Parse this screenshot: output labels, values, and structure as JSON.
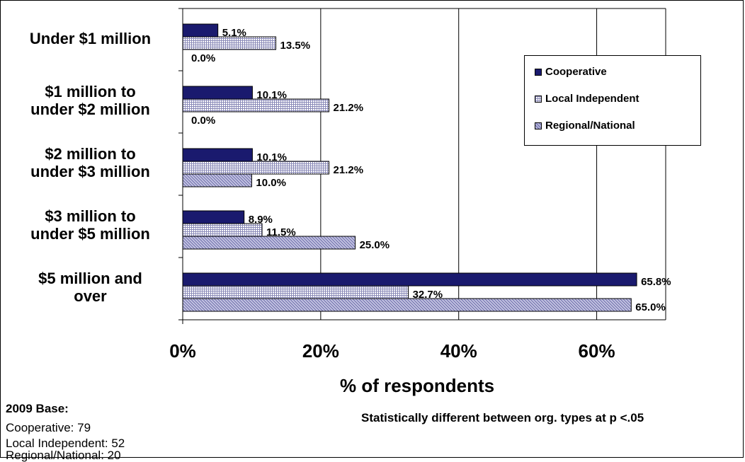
{
  "chart_data": {
    "type": "bar",
    "orientation": "horizontal",
    "categories": [
      "Under $1 million",
      "$1 million to under $2 million",
      "$2 million to under $3 million",
      "$3 million to under $5 million",
      "$5 million and over"
    ],
    "category_lines": [
      [
        "Under $1 million"
      ],
      [
        "$1 million to",
        "under $2 million"
      ],
      [
        "$2 million to",
        "under $3 million"
      ],
      [
        "$3 million to",
        "under $5 million"
      ],
      [
        "$5 million and",
        "over"
      ]
    ],
    "series": [
      {
        "name": "Cooperative",
        "values": [
          5.1,
          10.1,
          10.1,
          8.9,
          65.8
        ],
        "labels": [
          "5.1%",
          "10.1%",
          "10.1%",
          "8.9%",
          "65.8%"
        ]
      },
      {
        "name": "Local Independent",
        "values": [
          13.5,
          21.2,
          21.2,
          11.5,
          32.7
        ],
        "labels": [
          "13.5%",
          "21.2%",
          "21.2%",
          "11.5%",
          "32.7%"
        ]
      },
      {
        "name": "Regional/National",
        "values": [
          0.0,
          0.0,
          10.0,
          25.0,
          65.0
        ],
        "labels": [
          "0.0%",
          "0.0%",
          "10.0%",
          "25.0%",
          "65.0%"
        ]
      }
    ],
    "xticks": [
      "0%",
      "20%",
      "40%",
      "60%"
    ],
    "xtick_values": [
      0,
      20,
      40,
      60
    ],
    "xlim": [
      0,
      70
    ],
    "xlabel": "% of respondents",
    "grid": "vertical",
    "legend_position": "top-right",
    "colors": {
      "Cooperative": "#1a1a6e",
      "Local Independent": "#ffffff",
      "Regional/National": "#b8b8dc"
    }
  },
  "base": {
    "title": "2009 Base:",
    "lines": [
      "Cooperative: 79",
      "Local Independent: 52",
      "Regional/National: 20"
    ]
  },
  "note": "Statistically different between org. types at p <.05"
}
